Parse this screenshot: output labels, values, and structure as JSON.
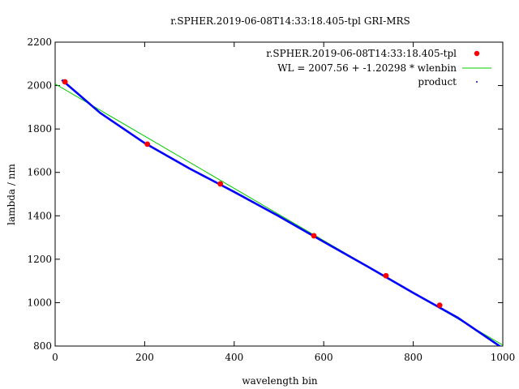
{
  "chart_data": {
    "type": "scatter",
    "title": "r.SPHER.2019-06-08T14:33:18.405-tpl   GRI-MRS",
    "xlabel": "wavelength bin",
    "ylabel": "lambda / nm",
    "xlim": [
      0,
      1000
    ],
    "ylim": [
      800,
      2200
    ],
    "xticks": [
      0,
      200,
      400,
      600,
      800,
      1000
    ],
    "yticks": [
      800,
      1000,
      1200,
      1400,
      1600,
      1800,
      2000,
      2200
    ],
    "grid": false,
    "legend_position": "top-right",
    "series": [
      {
        "name": "r.SPHER.2019-06-08T14:33:18.405-tpl",
        "kind": "points",
        "color": "#ff0000",
        "x": [
          22,
          206,
          369,
          578,
          739,
          859
        ],
        "y": [
          2017,
          1730,
          1547,
          1308,
          1124,
          988
        ]
      },
      {
        "name": "WL = 2007.56 + -1.20298 * wlenbin",
        "kind": "line",
        "color": "#00cc00",
        "x": [
          0,
          1000
        ],
        "y": [
          2007.56,
          804.58
        ]
      },
      {
        "name": "product",
        "kind": "dense-line",
        "color": "#0000ff",
        "x": [
          15,
          100,
          200,
          300,
          400,
          500,
          600,
          700,
          800,
          900,
          1000
        ],
        "y": [
          2026,
          1875,
          1735,
          1618,
          1510,
          1398,
          1280,
          1164,
          1045,
          930,
          790
        ]
      }
    ]
  }
}
